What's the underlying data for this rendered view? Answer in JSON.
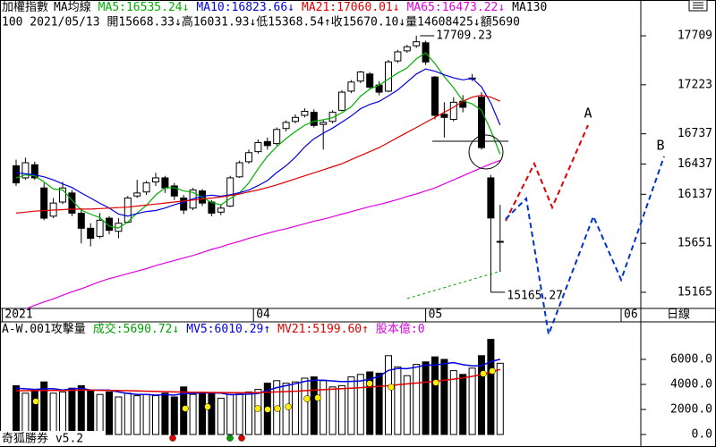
{
  "chart_data": {
    "type": "candlestick",
    "title": "加權指數",
    "indicator": "MA均線",
    "info": "100 2021/05/13 開15668.33↓高16031.93↓低15368.54↑收15670.10↓量14608425↓額5690",
    "extra_legend": "MA130",
    "period": "日線",
    "footer": "奇狐勝券 v5.2",
    "xticks": [
      {
        "value": -1.5,
        "label": "2021"
      },
      {
        "value": 25.5,
        "label": "04"
      },
      {
        "value": 44,
        "label": "05"
      },
      {
        "value": 65,
        "label": "06"
      }
    ],
    "ylim": [
      15005,
      18064
    ],
    "yticks": [
      17709,
      17223,
      16737,
      16437,
      16137,
      15651,
      15165
    ],
    "up_color": "#ffffff",
    "down_color": "#000000",
    "ohlc": [
      [
        16420,
        16480,
        16220,
        16250
      ],
      [
        16300,
        16500,
        16280,
        16450
      ],
      [
        16430,
        16460,
        16280,
        16300
      ],
      [
        16200,
        16250,
        15880,
        15900
      ],
      [
        15920,
        16100,
        15900,
        16050
      ],
      [
        16060,
        16260,
        16040,
        16200
      ],
      [
        16150,
        16180,
        15920,
        15950
      ],
      [
        15950,
        16000,
        15650,
        15800
      ],
      [
        15800,
        15850,
        15620,
        15700
      ],
      [
        15720,
        15950,
        15700,
        15880
      ],
      [
        15900,
        15920,
        15740,
        15780
      ],
      [
        15770,
        15900,
        15700,
        15850
      ],
      [
        15860,
        16120,
        15850,
        16100
      ],
      [
        16120,
        16280,
        16100,
        16150
      ],
      [
        16160,
        16270,
        16130,
        16250
      ],
      [
        16260,
        16350,
        16220,
        16300
      ],
      [
        16300,
        16320,
        16150,
        16200
      ],
      [
        16220,
        16250,
        16080,
        16120
      ],
      [
        16100,
        16130,
        15940,
        15980
      ],
      [
        16000,
        16200,
        15980,
        16180
      ],
      [
        16170,
        16190,
        16020,
        16050
      ],
      [
        16060,
        16080,
        15920,
        15950
      ],
      [
        15960,
        16040,
        15930,
        16000
      ],
      [
        16020,
        16320,
        16010,
        16300
      ],
      [
        16310,
        16470,
        16300,
        16450
      ],
      [
        16460,
        16580,
        16440,
        16550
      ],
      [
        16560,
        16680,
        16540,
        16650
      ],
      [
        16660,
        16700,
        16580,
        16620
      ],
      [
        16640,
        16800,
        16620,
        16780
      ],
      [
        16790,
        16870,
        16760,
        16850
      ],
      [
        16860,
        16930,
        16840,
        16900
      ],
      [
        16920,
        16990,
        16900,
        16960
      ],
      [
        16950,
        16980,
        16800,
        16820
      ],
      [
        16830,
        16870,
        16580,
        16850
      ],
      [
        16860,
        16970,
        16840,
        16950
      ],
      [
        16970,
        17170,
        16960,
        17150
      ],
      [
        17160,
        17270,
        17140,
        17250
      ],
      [
        17260,
        17360,
        17240,
        17350
      ],
      [
        17330,
        17350,
        17180,
        17200
      ],
      [
        17220,
        17260,
        17120,
        17150
      ],
      [
        17160,
        17470,
        17150,
        17450
      ],
      [
        17460,
        17570,
        17440,
        17550
      ],
      [
        17560,
        17620,
        17540,
        17600
      ],
      [
        17610,
        17709.23,
        17590,
        17650
      ],
      [
        17640,
        17660,
        17420,
        17450
      ],
      [
        17300,
        17310,
        16880,
        16920
      ],
      [
        16930,
        17050,
        16700,
        16900
      ],
      [
        16880,
        17100,
        16860,
        17050
      ],
      [
        17060,
        17120,
        16950,
        17000
      ],
      [
        17280,
        17330,
        17260,
        17290
      ],
      [
        17100,
        17150,
        16580,
        16600
      ],
      [
        16300,
        16330,
        15165.27,
        15902
      ],
      [
        15668.33,
        16031.93,
        15368.54,
        15670.1
      ]
    ],
    "series": [
      {
        "name": "MA5",
        "label": "MA5:16535.24↓",
        "color": "#00b000",
        "values": [
          16300,
          16330,
          16320,
          16260,
          16190,
          16180,
          16080,
          15980,
          15940,
          15906,
          15822,
          15802,
          15862,
          15952,
          16026,
          16130,
          16200,
          16204,
          16170,
          16156,
          16106,
          16056,
          16032,
          16096,
          16150,
          16250,
          16390,
          16514,
          16610,
          16690,
          16760,
          16822,
          16862,
          16876,
          16896,
          16946,
          17004,
          17110,
          17180,
          17220,
          17280,
          17340,
          17390,
          17480,
          17540,
          17434,
          17304,
          17194,
          17064,
          17034,
          16970,
          16770,
          16535.24
        ]
      },
      {
        "name": "MA10",
        "label": "MA10:16823.66↓",
        "color": "#0000e0",
        "values": [
          16350,
          16340,
          16330,
          16310,
          16280,
          16240,
          16205,
          16150,
          16100,
          16048,
          16001,
          15941,
          15921,
          15946,
          15966,
          15976,
          16001,
          16033,
          16061,
          16091,
          16118,
          16128,
          16118,
          16133,
          16153,
          16178,
          16223,
          16273,
          16353,
          16420,
          16505,
          16606,
          16688,
          16743,
          16793,
          16853,
          16913,
          16986,
          17028,
          17058,
          17113,
          17172,
          17250,
          17330,
          17380,
          17357,
          17322,
          17292,
          17272,
          17287,
          17202,
          17042,
          16823.66
        ]
      },
      {
        "name": "MA21",
        "label": "MA21:17060.01↓",
        "color": "#e00000",
        "values": [
          15950,
          15960,
          15970,
          15975,
          15980,
          15985,
          15990,
          15990,
          15990,
          15995,
          16000,
          16005,
          16010,
          16020,
          16030,
          16040,
          16050,
          16060,
          16070,
          16080,
          16090,
          16100,
          16110,
          16125,
          16140,
          16160,
          16180,
          16205,
          16230,
          16260,
          16290,
          16320,
          16350,
          16380,
          16410,
          16440,
          16480,
          16520,
          16560,
          16600,
          16650,
          16700,
          16750,
          16800,
          16850,
          16900,
          16950,
          17000,
          17060,
          17100,
          17120,
          17100,
          17060.01
        ]
      },
      {
        "name": "MA65",
        "label": "MA65:16473.22↓",
        "color": "#e000e0",
        "values": [
          null,
          15000,
          15035,
          15070,
          15100,
          15135,
          15170,
          15200,
          15235,
          15270,
          15300,
          15325,
          15350,
          15375,
          15400,
          15430,
          15455,
          15480,
          15505,
          15530,
          15560,
          15590,
          15615,
          15645,
          15670,
          15700,
          15725,
          15750,
          15775,
          15795,
          15820,
          15845,
          15870,
          15890,
          15915,
          15940,
          15965,
          15990,
          16015,
          16035,
          16060,
          16085,
          16115,
          16140,
          16170,
          16200,
          16240,
          16280,
          16320,
          16360,
          16400,
          16440,
          16473.22
        ]
      }
    ],
    "projections": [
      {
        "text": "A",
        "color": "#e00000"
      },
      {
        "text": "B",
        "color": "#0033cc"
      }
    ],
    "volume": {
      "title": "A-W.001攻擊量",
      "label": "成交:5690.72↓",
      "label_color": "#00a000",
      "extra": "股本億:0",
      "extra_color": "#e000e0",
      "values": [
        3900,
        3300,
        3600,
        4200,
        3300,
        3400,
        3700,
        3900,
        3500,
        3200,
        3400,
        3000,
        3300,
        3100,
        3200,
        3100,
        3300,
        3000,
        3800,
        3200,
        3300,
        3300,
        2900,
        3200,
        3300,
        3400,
        3600,
        4100,
        4300,
        4100,
        4200,
        4500,
        4600,
        4300,
        3800,
        3900,
        4600,
        4800,
        5000,
        4900,
        6300,
        5400,
        4700,
        5600,
        5800,
        6200,
        6000,
        5100,
        4800,
        5300,
        6300,
        7600,
        5690.72
      ],
      "ylim": [
        -1000,
        9000
      ],
      "yticks": [
        {
          "value": 6000,
          "label": "6000.0"
        },
        {
          "value": 4000,
          "label": "4000.0"
        },
        {
          "value": 2000,
          "label": "2000.0"
        },
        {
          "value": 0,
          "label": "0.0"
        }
      ],
      "series": [
        {
          "name": "MV5",
          "label": "MV5:6010.29↑",
          "color": "#0000e0",
          "values": [
            3700,
            3650,
            3600,
            3650,
            3660,
            3560,
            3640,
            3700,
            3560,
            3540,
            3540,
            3400,
            3280,
            3200,
            3200,
            3140,
            3200,
            3140,
            3280,
            3280,
            3320,
            3320,
            3300,
            3180,
            3200,
            3220,
            3280,
            3520,
            3740,
            3900,
            4060,
            4240,
            4340,
            4340,
            4280,
            4220,
            4240,
            4280,
            4420,
            4640,
            5120,
            5280,
            5260,
            5380,
            5560,
            5540,
            5660,
            5740,
            5580,
            5480,
            5500,
            5820,
            6010.29
          ]
        },
        {
          "name": "MV21",
          "label": "MV21:5199.60↑",
          "color": "#e00000",
          "values": [
            3500,
            3500,
            3510,
            3520,
            3520,
            3520,
            3530,
            3540,
            3540,
            3530,
            3520,
            3510,
            3500,
            3480,
            3460,
            3440,
            3420,
            3400,
            3390,
            3380,
            3370,
            3360,
            3350,
            3340,
            3340,
            3340,
            3350,
            3370,
            3400,
            3430,
            3460,
            3500,
            3540,
            3580,
            3620,
            3660,
            3700,
            3740,
            3790,
            3840,
            3900,
            3970,
            4040,
            4110,
            4180,
            4250,
            4330,
            4420,
            4520,
            4640,
            4790,
            4970,
            5199.6
          ]
        }
      ]
    }
  }
}
